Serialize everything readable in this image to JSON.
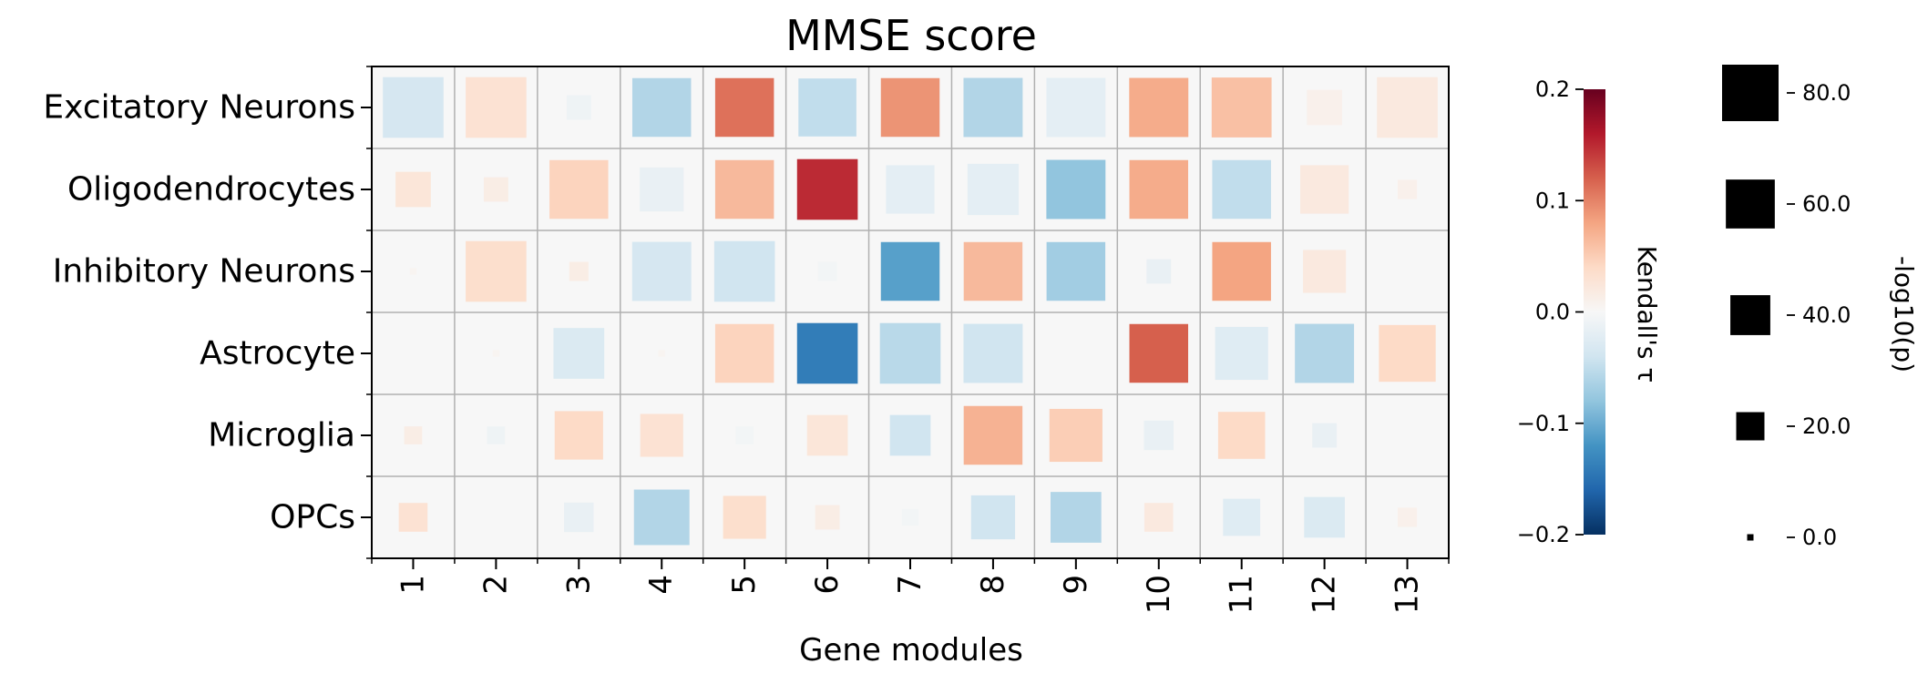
{
  "chart_data": {
    "type": "heatmap",
    "title": "MMSE score",
    "xlabel": "Gene modules",
    "ylabel": "",
    "x_categories": [
      "1",
      "2",
      "3",
      "4",
      "5",
      "6",
      "7",
      "8",
      "9",
      "10",
      "11",
      "12",
      "13"
    ],
    "y_categories": [
      "Excitatory Neurons",
      "Oligodendrocytes",
      "Inhibitory Neurons",
      "Astrocyte",
      "Microglia",
      "OPCs"
    ],
    "tau": [
      [
        -0.035,
        0.03,
        -0.01,
        -0.06,
        0.11,
        -0.05,
        0.09,
        -0.06,
        -0.02,
        0.075,
        0.06,
        0.01,
        0.02
      ],
      [
        0.025,
        0.015,
        0.045,
        -0.015,
        0.065,
        0.15,
        -0.02,
        -0.02,
        -0.08,
        0.075,
        -0.05,
        0.02,
        0.01
      ],
      [
        0.005,
        0.035,
        0.015,
        -0.035,
        -0.04,
        -0.005,
        -0.11,
        0.065,
        -0.07,
        -0.015,
        0.08,
        0.02,
        0.0
      ],
      [
        0.0,
        0.005,
        -0.03,
        0.005,
        0.045,
        -0.14,
        -0.055,
        -0.04,
        0.0,
        0.12,
        -0.025,
        -0.06,
        0.04
      ],
      [
        0.015,
        -0.01,
        0.04,
        0.03,
        -0.005,
        0.025,
        -0.04,
        0.07,
        0.05,
        -0.015,
        0.04,
        -0.015,
        0.0
      ],
      [
        0.03,
        0.0,
        -0.015,
        -0.06,
        0.035,
        0.015,
        -0.005,
        -0.04,
        -0.06,
        0.02,
        -0.025,
        -0.03,
        0.01
      ]
    ],
    "neg_log10_p": [
      [
        80,
        80,
        13,
        75,
        75,
        73,
        75,
        76,
        76,
        76,
        78,
        27,
        80
      ],
      [
        27,
        13,
        75,
        42,
        75,
        80,
        51,
        57,
        76,
        75,
        75,
        51,
        8
      ],
      [
        1,
        80,
        8,
        76,
        80,
        8,
        75,
        75,
        75,
        13,
        75,
        40,
        0
      ],
      [
        0,
        1,
        56,
        1,
        75,
        80,
        80,
        76,
        0,
        75,
        61,
        76,
        70
      ],
      [
        7,
        7,
        51,
        40,
        7,
        36,
        36,
        75,
        61,
        19,
        48,
        13,
        0
      ],
      [
        18,
        0,
        19,
        67,
        40,
        13,
        6,
        42,
        56,
        18,
        30,
        36,
        8
      ]
    ],
    "color_scale": {
      "label": "Kendall's τ",
      "min": -0.2,
      "max": 0.2,
      "ticks": [
        0.2,
        0.1,
        0.0,
        -0.1,
        -0.2
      ],
      "tick_labels": [
        "0.2",
        "0.1",
        "0.0",
        "−0.1",
        "−0.2"
      ],
      "colormap": "RdBu_r"
    },
    "size_scale": {
      "label": "-log10(p)",
      "ticks": [
        80.0,
        60.0,
        40.0,
        20.0,
        0.0
      ],
      "tick_labels": [
        "80.0",
        "60.0",
        "40.0",
        "20.0",
        "0.0"
      ],
      "max": 80
    },
    "colors": {
      "cell_background": "#f7f7f7",
      "grid": "#b0b0b0"
    }
  }
}
